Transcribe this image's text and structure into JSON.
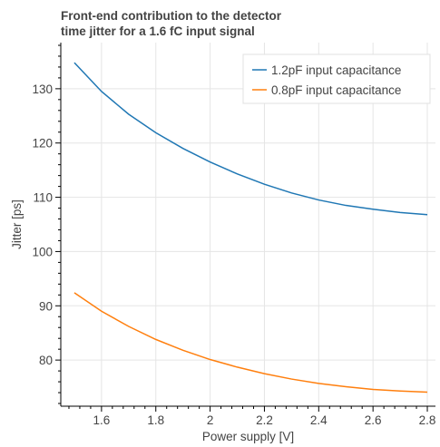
{
  "chart_data": {
    "type": "line",
    "title_lines": [
      "Front-end contribution to the detector",
      "time jitter for a 1.6 fC input signal"
    ],
    "xlabel": "Power supply [V]",
    "ylabel": "Jitter [ps]",
    "xlim": [
      1.45,
      2.83
    ],
    "ylim": [
      71.5,
      138.5
    ],
    "xticks": [
      1.6,
      1.8,
      2.0,
      2.2,
      2.4,
      2.6,
      2.8
    ],
    "xtick_labels": [
      "1.6",
      "1.8",
      "2",
      "2.2",
      "2.4",
      "2.6",
      "2.8"
    ],
    "yticks": [
      80,
      90,
      100,
      110,
      120,
      130
    ],
    "ytick_labels": [
      "80",
      "90",
      "100",
      "110",
      "120",
      "130"
    ],
    "grid": true,
    "legend_position": "top-right",
    "series": [
      {
        "name": "1.2pF input capacitance",
        "color": "#1f77b4",
        "x": [
          1.5,
          1.6,
          1.7,
          1.8,
          1.9,
          2.0,
          2.1,
          2.2,
          2.3,
          2.4,
          2.5,
          2.6,
          2.7,
          2.8
        ],
        "y": [
          134.8,
          129.5,
          125.3,
          121.9,
          119.0,
          116.5,
          114.3,
          112.4,
          110.8,
          109.5,
          108.5,
          107.8,
          107.2,
          106.8
        ]
      },
      {
        "name": "0.8pF input capacitance",
        "color": "#ff7f0e",
        "x": [
          1.5,
          1.6,
          1.7,
          1.8,
          1.9,
          2.0,
          2.1,
          2.2,
          2.3,
          2.4,
          2.5,
          2.6,
          2.7,
          2.8
        ],
        "y": [
          92.4,
          89.0,
          86.2,
          83.8,
          81.8,
          80.1,
          78.7,
          77.5,
          76.5,
          75.7,
          75.1,
          74.6,
          74.3,
          74.1
        ]
      }
    ]
  }
}
